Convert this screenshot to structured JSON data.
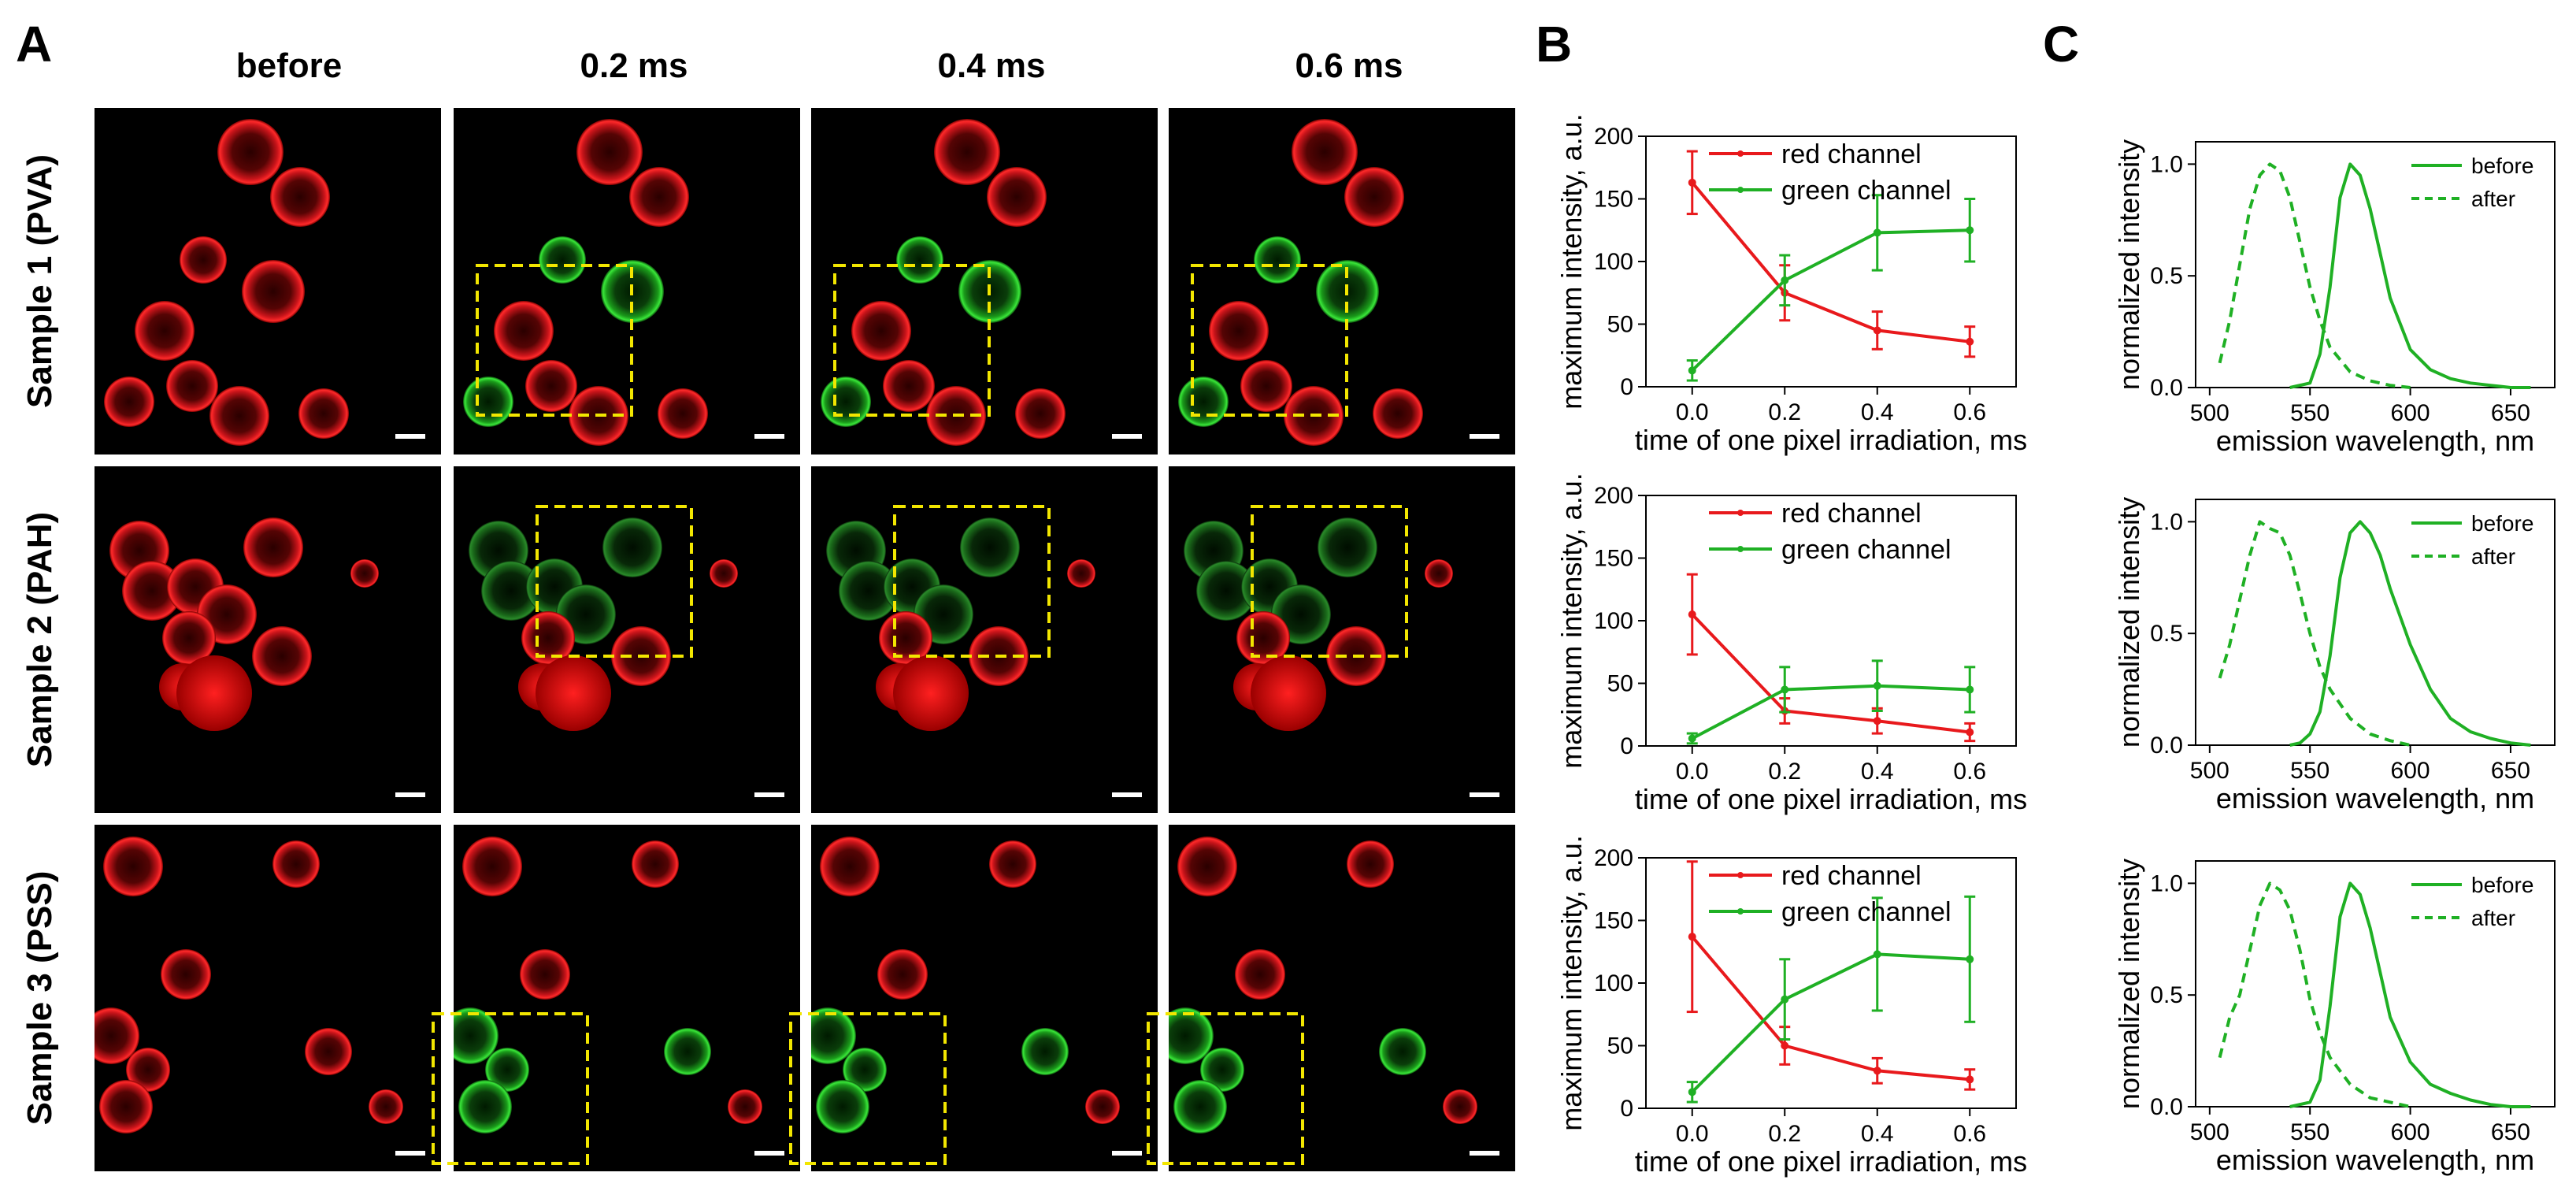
{
  "panel_labels": [
    "A",
    "B",
    "C"
  ],
  "column_headers": [
    "before",
    "0.2 ms",
    "0.4 ms",
    "0.6 ms"
  ],
  "row_labels": [
    "Sample 1 (PVA)",
    "Sample 2 (PAH)",
    "Sample 3 (PSS)"
  ],
  "colors": {
    "red_channel": "#e8191c",
    "green_channel": "#1fb024",
    "highlight_box": "#f2e600",
    "image_background": "#000000"
  },
  "chart_data": [
    {
      "type": "line",
      "panel": "B",
      "row": "Sample 1 (PVA)",
      "xlabel": "time of one pixel irradiation, ms",
      "ylabel": "maximum intensity, a.u.",
      "x": [
        0.0,
        0.2,
        0.4,
        0.6
      ],
      "xlim": [
        -0.1,
        0.7
      ],
      "ylim": [
        0,
        200
      ],
      "xticks": [
        "0.0",
        "0.2",
        "0.4",
        "0.6"
      ],
      "yticks": [
        "0",
        "50",
        "100",
        "150",
        "200"
      ],
      "legend": "top-left",
      "series": [
        {
          "name": "red channel",
          "values": [
            163,
            75,
            45,
            36
          ],
          "errors": [
            25,
            22,
            15,
            12
          ]
        },
        {
          "name": "green channel",
          "values": [
            13,
            85,
            123,
            125
          ],
          "errors": [
            8,
            20,
            30,
            25
          ]
        }
      ]
    },
    {
      "type": "line",
      "panel": "B",
      "row": "Sample 2 (PAH)",
      "xlabel": "time of one pixel irradiation, ms",
      "ylabel": "maximum intensity, a.u.",
      "x": [
        0.0,
        0.2,
        0.4,
        0.6
      ],
      "xlim": [
        -0.1,
        0.7
      ],
      "ylim": [
        0,
        200
      ],
      "xticks": [
        "0.0",
        "0.2",
        "0.4",
        "0.6"
      ],
      "yticks": [
        "0",
        "50",
        "100",
        "150",
        "200"
      ],
      "legend": "top-left",
      "series": [
        {
          "name": "red channel",
          "values": [
            105,
            28,
            20,
            11
          ],
          "errors": [
            32,
            10,
            10,
            7
          ]
        },
        {
          "name": "green channel",
          "values": [
            6,
            45,
            48,
            45
          ],
          "errors": [
            4,
            18,
            20,
            18
          ]
        }
      ]
    },
    {
      "type": "line",
      "panel": "B",
      "row": "Sample 3 (PSS)",
      "xlabel": "time of one pixel irradiation, ms",
      "ylabel": "maximum intensity, a.u.",
      "x": [
        0.0,
        0.2,
        0.4,
        0.6
      ],
      "xlim": [
        -0.1,
        0.7
      ],
      "ylim": [
        0,
        200
      ],
      "xticks": [
        "0.0",
        "0.2",
        "0.4",
        "0.6"
      ],
      "yticks": [
        "0",
        "50",
        "100",
        "150",
        "200"
      ],
      "legend": "top-left",
      "series": [
        {
          "name": "red channel",
          "values": [
            137,
            50,
            30,
            23
          ],
          "errors": [
            60,
            15,
            10,
            8
          ]
        },
        {
          "name": "green channel",
          "values": [
            13,
            87,
            123,
            119
          ],
          "errors": [
            8,
            32,
            45,
            50
          ]
        }
      ]
    },
    {
      "type": "line",
      "panel": "C",
      "row": "Sample 1 (PVA)",
      "xlabel": "emission wavelength, nm",
      "ylabel": "normalized intensity",
      "xlim": [
        493,
        672
      ],
      "ylim": [
        0,
        1.1
      ],
      "xticks": [
        "500",
        "550",
        "600",
        "650"
      ],
      "yticks": [
        "0.0",
        "0.5",
        "1.0"
      ],
      "legend": "top-right",
      "series": [
        {
          "name": "before",
          "style": "solid",
          "x": [
            540,
            550,
            555,
            560,
            565,
            570,
            575,
            580,
            585,
            590,
            600,
            610,
            620,
            630,
            640,
            650,
            660
          ],
          "values": [
            0,
            0.02,
            0.15,
            0.45,
            0.85,
            1.0,
            0.95,
            0.8,
            0.6,
            0.4,
            0.17,
            0.08,
            0.04,
            0.02,
            0.01,
            0,
            0
          ]
        },
        {
          "name": "after",
          "style": "dashed",
          "x": [
            505,
            510,
            515,
            520,
            525,
            530,
            535,
            540,
            545,
            550,
            555,
            560,
            570,
            580,
            590,
            600
          ],
          "values": [
            0.11,
            0.3,
            0.55,
            0.8,
            0.95,
            1.0,
            0.97,
            0.85,
            0.65,
            0.45,
            0.3,
            0.18,
            0.07,
            0.03,
            0.01,
            0
          ]
        }
      ]
    },
    {
      "type": "line",
      "panel": "C",
      "row": "Sample 2 (PAH)",
      "xlabel": "emission wavelength, nm",
      "ylabel": "normalized intensity",
      "xlim": [
        493,
        672
      ],
      "ylim": [
        0,
        1.1
      ],
      "xticks": [
        "500",
        "550",
        "600",
        "650"
      ],
      "yticks": [
        "0.0",
        "0.5",
        "1.0"
      ],
      "legend": "top-right",
      "series": [
        {
          "name": "before",
          "style": "solid",
          "x": [
            540,
            545,
            550,
            555,
            560,
            565,
            570,
            575,
            580,
            585,
            590,
            600,
            610,
            620,
            630,
            640,
            650,
            660
          ],
          "values": [
            0,
            0.01,
            0.05,
            0.15,
            0.4,
            0.75,
            0.95,
            1.0,
            0.95,
            0.85,
            0.7,
            0.45,
            0.25,
            0.12,
            0.06,
            0.03,
            0.01,
            0
          ]
        },
        {
          "name": "after",
          "style": "dashed",
          "x": [
            505,
            510,
            515,
            520,
            525,
            530,
            535,
            540,
            545,
            550,
            555,
            560,
            570,
            580,
            590,
            600
          ],
          "values": [
            0.3,
            0.45,
            0.65,
            0.85,
            1.0,
            0.97,
            0.95,
            0.85,
            0.68,
            0.5,
            0.35,
            0.25,
            0.12,
            0.05,
            0.02,
            0
          ]
        }
      ]
    },
    {
      "type": "line",
      "panel": "C",
      "row": "Sample 3 (PSS)",
      "xlabel": "emission wavelength, nm",
      "ylabel": "normalized intensity",
      "xlim": [
        493,
        672
      ],
      "ylim": [
        0,
        1.1
      ],
      "xticks": [
        "500",
        "550",
        "600",
        "650"
      ],
      "yticks": [
        "0.0",
        "0.5",
        "1.0"
      ],
      "legend": "top-right",
      "series": [
        {
          "name": "before",
          "style": "solid",
          "x": [
            540,
            550,
            555,
            560,
            565,
            570,
            575,
            580,
            585,
            590,
            600,
            610,
            620,
            630,
            640,
            650,
            660
          ],
          "values": [
            0,
            0.02,
            0.12,
            0.45,
            0.85,
            1.0,
            0.95,
            0.8,
            0.6,
            0.4,
            0.2,
            0.1,
            0.06,
            0.03,
            0.01,
            0,
            0
          ]
        },
        {
          "name": "after",
          "style": "dashed",
          "x": [
            505,
            510,
            515,
            520,
            525,
            530,
            535,
            540,
            545,
            550,
            555,
            560,
            570,
            580,
            590,
            600
          ],
          "values": [
            0.22,
            0.4,
            0.5,
            0.7,
            0.9,
            1.0,
            0.97,
            0.88,
            0.7,
            0.48,
            0.33,
            0.22,
            0.1,
            0.04,
            0.02,
            0
          ]
        }
      ]
    }
  ]
}
